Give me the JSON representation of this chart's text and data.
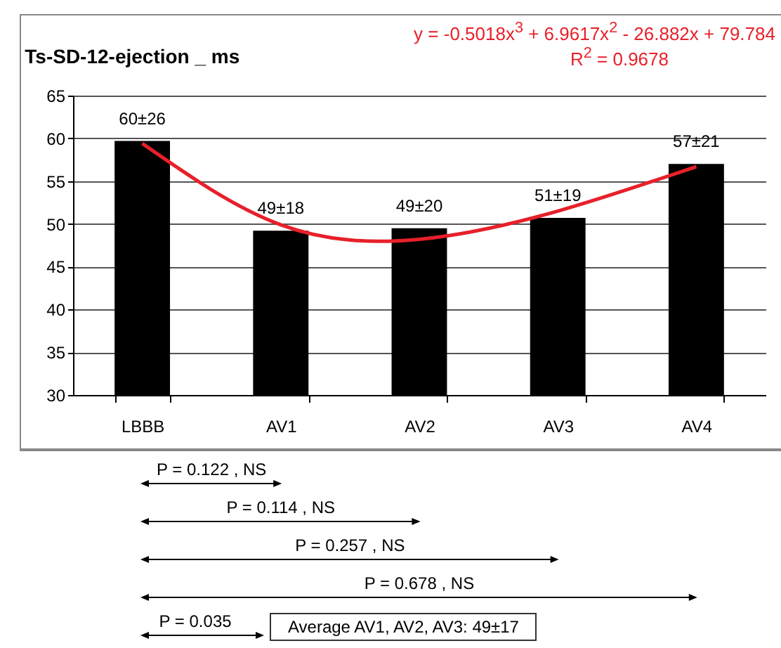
{
  "chart_data": {
    "type": "bar",
    "title": "Ts-SD-12-ejection _ ms",
    "categories": [
      "LBBB",
      "AV1",
      "AV2",
      "AV3",
      "AV4"
    ],
    "series": [
      {
        "color": "#000000",
        "values": [
          59.7,
          49.2,
          49.5,
          50.7,
          57
        ],
        "value_labels": [
          "60±26",
          "49±18",
          "49±20",
          "51±19",
          "57±21"
        ]
      },
      {
        "type": "line",
        "color": "#e8202a",
        "values": [
          59.4,
          49.9,
          48.2,
          51.5,
          56.7
        ]
      }
    ],
    "ylim": [
      30,
      65
    ],
    "yticks": [
      30,
      35,
      40,
      45,
      50,
      55,
      60,
      65
    ],
    "grid": "y",
    "annotations": [
      "y = -0.5018x$^{3}$ + 6.9617x$^{2}$ - 26.882x + 79.784",
      "R$^{2}$ = 0.9678",
      "P = 0.122 , NS",
      "P = 0.114 , NS",
      "P = 0.257 , NS",
      "P = 0.678 , NS",
      "P = 0.035",
      "Average AV1, AV2, AV3: 49±17"
    ]
  }
}
